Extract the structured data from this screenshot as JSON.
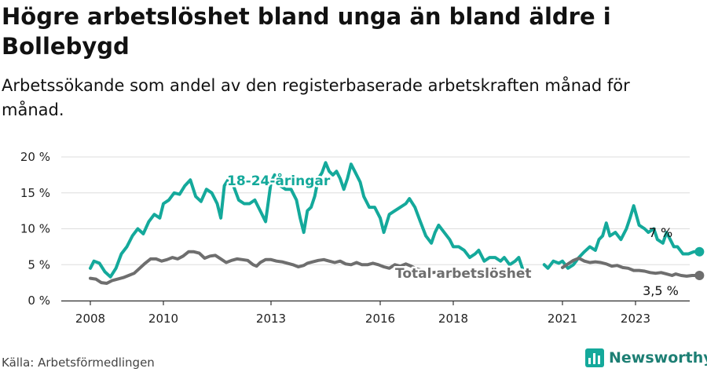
{
  "header": {
    "title": "Högre arbetslöshet bland unga än bland äldre i Bollebygd",
    "subtitle": "Arbetssökande som andel av den registerbaserade arbetskraften månad för månad."
  },
  "footer": {
    "source": "Källa: Arbetsförmedlingen",
    "brand": "Newsworthy"
  },
  "colors": {
    "youth": "#14a99b",
    "total": "#6e6e6e",
    "grid": "#dddddd",
    "axis": "#333333"
  },
  "chart_data": {
    "type": "line",
    "xlim": [
      2007.6,
      2024.9
    ],
    "ylim": [
      0,
      20
    ],
    "y_ticks": [
      0,
      5,
      10,
      15,
      20
    ],
    "y_tick_labels": [
      "0 %",
      "5 %",
      "10 %",
      "15 %",
      "20 %"
    ],
    "x_ticks": [
      2008,
      2010,
      2013,
      2016,
      2018,
      2021,
      2023
    ],
    "x_tick_labels": [
      "2008",
      "2010",
      "2013",
      "2016",
      "2018",
      "2021",
      "2023"
    ],
    "grid": true,
    "series": [
      {
        "name": "18-24-åringar",
        "label": "18-24-åringar",
        "color": "#14a99b",
        "end_label": "7 %",
        "points": [
          [
            2008.0,
            4.5
          ],
          [
            2008.1,
            5.5
          ],
          [
            2008.25,
            5.2
          ],
          [
            2008.4,
            4.0
          ],
          [
            2008.55,
            3.3
          ],
          [
            2008.7,
            4.5
          ],
          [
            2008.85,
            6.5
          ],
          [
            2009.0,
            7.5
          ],
          [
            2009.15,
            9.0
          ],
          [
            2009.3,
            10.0
          ],
          [
            2009.45,
            9.3
          ],
          [
            2009.6,
            11.0
          ],
          [
            2009.75,
            12.0
          ],
          [
            2009.9,
            11.5
          ],
          [
            2010.0,
            13.5
          ],
          [
            2010.15,
            14.0
          ],
          [
            2010.3,
            15.0
          ],
          [
            2010.45,
            14.8
          ],
          [
            2010.6,
            16.0
          ],
          [
            2010.75,
            16.8
          ],
          [
            2010.9,
            14.5
          ],
          [
            2011.05,
            13.8
          ],
          [
            2011.2,
            15.5
          ],
          [
            2011.35,
            15.0
          ],
          [
            2011.5,
            13.5
          ],
          [
            2011.6,
            11.5
          ],
          [
            2011.7,
            16.0
          ],
          [
            2011.8,
            16.8
          ],
          [
            2011.95,
            16.0
          ],
          [
            2012.1,
            14.0
          ],
          [
            2012.25,
            13.5
          ],
          [
            2012.4,
            13.5
          ],
          [
            2012.55,
            14.0
          ],
          [
            2012.7,
            12.5
          ],
          [
            2012.85,
            11.0
          ],
          [
            2013.0,
            16.5
          ],
          [
            2013.1,
            17.5
          ],
          [
            2013.25,
            16.0
          ],
          [
            2013.4,
            15.5
          ],
          [
            2013.55,
            15.5
          ],
          [
            2013.7,
            14.0
          ],
          [
            2013.8,
            11.5
          ],
          [
            2013.9,
            9.5
          ],
          [
            2014.0,
            12.5
          ],
          [
            2014.1,
            13.0
          ],
          [
            2014.2,
            14.5
          ],
          [
            2014.3,
            17.0
          ],
          [
            2014.4,
            17.8
          ],
          [
            2014.5,
            19.2
          ],
          [
            2014.6,
            18.0
          ],
          [
            2014.7,
            17.5
          ],
          [
            2014.8,
            18.0
          ],
          [
            2014.9,
            17.0
          ],
          [
            2015.0,
            15.5
          ],
          [
            2015.1,
            17.0
          ],
          [
            2015.2,
            19.0
          ],
          [
            2015.3,
            18.0
          ],
          [
            2015.45,
            16.5
          ],
          [
            2015.55,
            14.5
          ],
          [
            2015.7,
            13.0
          ],
          [
            2015.85,
            13.0
          ],
          [
            2016.0,
            11.5
          ],
          [
            2016.1,
            9.5
          ],
          [
            2016.25,
            12.0
          ],
          [
            2016.4,
            12.5
          ],
          [
            2016.55,
            13.0
          ],
          [
            2016.7,
            13.5
          ],
          [
            2016.8,
            14.2
          ],
          [
            2016.95,
            13.0
          ],
          [
            2017.1,
            11.0
          ],
          [
            2017.25,
            9.0
          ],
          [
            2017.4,
            8.0
          ],
          [
            2017.5,
            9.5
          ],
          [
            2017.6,
            10.5
          ],
          [
            2017.75,
            9.5
          ],
          [
            2017.9,
            8.5
          ],
          [
            2018.0,
            7.5
          ],
          [
            2018.15,
            7.5
          ],
          [
            2018.3,
            7.0
          ],
          [
            2018.45,
            6.0
          ],
          [
            2018.6,
            6.5
          ],
          [
            2018.7,
            7.0
          ],
          [
            2018.85,
            5.5
          ],
          [
            2019.0,
            6.0
          ],
          [
            2019.15,
            6.0
          ],
          [
            2019.3,
            5.5
          ],
          [
            2019.4,
            6.0
          ],
          [
            2019.55,
            5.0
          ],
          [
            2019.7,
            5.5
          ],
          [
            2019.8,
            6.0
          ],
          [
            2019.9,
            4.5
          ]
        ]
      },
      {
        "name": "18-24-åringar (forts.)",
        "label": "",
        "color": "#14a99b",
        "points": [
          [
            2020.5,
            5.0
          ],
          [
            2020.6,
            4.5
          ],
          [
            2020.75,
            5.5
          ],
          [
            2020.9,
            5.2
          ],
          [
            2021.0,
            5.5
          ],
          [
            2021.15,
            4.5
          ],
          [
            2021.3,
            5.0
          ],
          [
            2021.45,
            6.0
          ],
          [
            2021.6,
            6.8
          ],
          [
            2021.75,
            7.5
          ],
          [
            2021.9,
            7.0
          ],
          [
            2022.0,
            8.5
          ],
          [
            2022.1,
            9.0
          ],
          [
            2022.2,
            10.8
          ],
          [
            2022.3,
            9.0
          ],
          [
            2022.45,
            9.5
          ],
          [
            2022.6,
            8.5
          ],
          [
            2022.75,
            10.0
          ],
          [
            2022.85,
            11.5
          ],
          [
            2022.95,
            13.2
          ],
          [
            2023.1,
            10.5
          ],
          [
            2023.25,
            10.0
          ],
          [
            2023.35,
            9.5
          ],
          [
            2023.5,
            10.0
          ],
          [
            2023.6,
            8.5
          ],
          [
            2023.75,
            8.0
          ],
          [
            2023.85,
            9.5
          ],
          [
            2023.95,
            8.5
          ],
          [
            2024.05,
            7.5
          ],
          [
            2024.15,
            7.5
          ],
          [
            2024.3,
            6.5
          ],
          [
            2024.45,
            6.5
          ],
          [
            2024.6,
            6.8
          ],
          [
            2024.75,
            6.8
          ]
        ]
      },
      {
        "name": "Total arbetslöshet",
        "label": "Total arbetslöshet",
        "color": "#6e6e6e",
        "end_label": "3,5 %",
        "points": [
          [
            2008.0,
            3.1
          ],
          [
            2008.15,
            3.0
          ],
          [
            2008.3,
            2.5
          ],
          [
            2008.45,
            2.4
          ],
          [
            2008.6,
            2.8
          ],
          [
            2008.75,
            3.0
          ],
          [
            2008.9,
            3.2
          ],
          [
            2009.05,
            3.5
          ],
          [
            2009.2,
            3.8
          ],
          [
            2009.35,
            4.5
          ],
          [
            2009.5,
            5.2
          ],
          [
            2009.65,
            5.8
          ],
          [
            2009.8,
            5.8
          ],
          [
            2009.95,
            5.5
          ],
          [
            2010.1,
            5.7
          ],
          [
            2010.25,
            6.0
          ],
          [
            2010.4,
            5.8
          ],
          [
            2010.55,
            6.2
          ],
          [
            2010.7,
            6.8
          ],
          [
            2010.85,
            6.8
          ],
          [
            2011.0,
            6.6
          ],
          [
            2011.15,
            5.9
          ],
          [
            2011.3,
            6.2
          ],
          [
            2011.45,
            6.3
          ],
          [
            2011.6,
            5.8
          ],
          [
            2011.75,
            5.3
          ],
          [
            2011.9,
            5.6
          ],
          [
            2012.05,
            5.8
          ],
          [
            2012.2,
            5.7
          ],
          [
            2012.35,
            5.6
          ],
          [
            2012.5,
            5.0
          ],
          [
            2012.6,
            4.8
          ],
          [
            2012.7,
            5.3
          ],
          [
            2012.85,
            5.7
          ],
          [
            2013.0,
            5.7
          ],
          [
            2013.15,
            5.5
          ],
          [
            2013.3,
            5.4
          ],
          [
            2013.45,
            5.2
          ],
          [
            2013.6,
            5.0
          ],
          [
            2013.75,
            4.7
          ],
          [
            2013.9,
            4.9
          ],
          [
            2014.0,
            5.2
          ],
          [
            2014.15,
            5.4
          ],
          [
            2014.3,
            5.6
          ],
          [
            2014.45,
            5.7
          ],
          [
            2014.6,
            5.5
          ],
          [
            2014.75,
            5.3
          ],
          [
            2014.9,
            5.5
          ],
          [
            2015.05,
            5.1
          ],
          [
            2015.2,
            5.0
          ],
          [
            2015.35,
            5.3
          ],
          [
            2015.5,
            5.0
          ],
          [
            2015.65,
            5.0
          ],
          [
            2015.8,
            5.2
          ],
          [
            2015.95,
            5.0
          ],
          [
            2016.1,
            4.7
          ],
          [
            2016.25,
            4.5
          ],
          [
            2016.4,
            5.0
          ],
          [
            2016.55,
            4.8
          ],
          [
            2016.7,
            5.1
          ],
          [
            2016.85,
            4.8
          ],
          [
            2017.0,
            4.4
          ],
          [
            2017.15,
            4.2
          ],
          [
            2017.3,
            4.0
          ],
          [
            2017.45,
            3.9
          ],
          [
            2017.6,
            4.0
          ],
          [
            2017.75,
            3.8
          ],
          [
            2017.9,
            3.6
          ],
          [
            2018.05,
            3.8
          ],
          [
            2018.2,
            3.9
          ],
          [
            2018.35,
            3.6
          ],
          [
            2018.5,
            3.5
          ],
          [
            2018.65,
            3.6
          ],
          [
            2018.8,
            3.4
          ],
          [
            2018.95,
            3.3
          ],
          [
            2019.1,
            3.2
          ],
          [
            2019.25,
            3.3
          ]
        ]
      },
      {
        "name": "Total arbetslöshet (forts.)",
        "label": "",
        "color": "#6e6e6e",
        "points": [
          [
            2021.0,
            4.6
          ],
          [
            2021.15,
            5.1
          ],
          [
            2021.3,
            5.6
          ],
          [
            2021.45,
            5.9
          ],
          [
            2021.6,
            5.5
          ],
          [
            2021.75,
            5.3
          ],
          [
            2021.9,
            5.4
          ],
          [
            2022.05,
            5.3
          ],
          [
            2022.2,
            5.1
          ],
          [
            2022.35,
            4.8
          ],
          [
            2022.5,
            4.9
          ],
          [
            2022.65,
            4.6
          ],
          [
            2022.8,
            4.5
          ],
          [
            2022.95,
            4.2
          ],
          [
            2023.1,
            4.2
          ],
          [
            2023.25,
            4.1
          ],
          [
            2023.4,
            3.9
          ],
          [
            2023.55,
            3.8
          ],
          [
            2023.7,
            3.9
          ],
          [
            2023.85,
            3.7
          ],
          [
            2024.0,
            3.5
          ],
          [
            2024.1,
            3.7
          ],
          [
            2024.25,
            3.5
          ],
          [
            2024.4,
            3.4
          ],
          [
            2024.55,
            3.5
          ],
          [
            2024.75,
            3.5
          ]
        ]
      }
    ]
  }
}
